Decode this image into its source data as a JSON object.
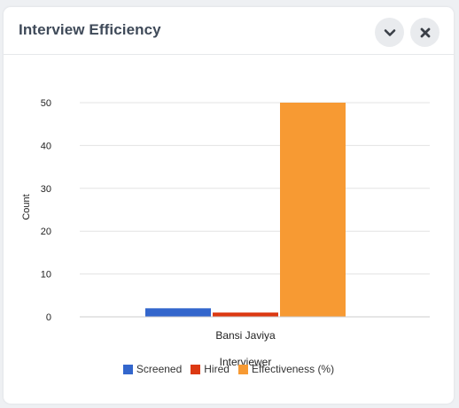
{
  "widget": {
    "title": "Interview Efficiency",
    "collapse_icon": "chevron-down-icon",
    "close_icon": "close-icon"
  },
  "chart_data": {
    "type": "bar",
    "categories": [
      "Bansi Javiya"
    ],
    "series": [
      {
        "name": "Screened",
        "values": [
          2
        ],
        "color": "#3366cc"
      },
      {
        "name": "Hired",
        "values": [
          1
        ],
        "color": "#dc3912"
      },
      {
        "name": "Effectiveness (%)",
        "values": [
          50
        ],
        "color": "#f79a33"
      }
    ],
    "xlabel": "Interviewer",
    "ylabel": "Count",
    "ylim": [
      0,
      50
    ],
    "yticks": [
      0,
      10,
      20,
      30,
      40,
      50
    ],
    "grid": true,
    "legend": "bottom"
  }
}
